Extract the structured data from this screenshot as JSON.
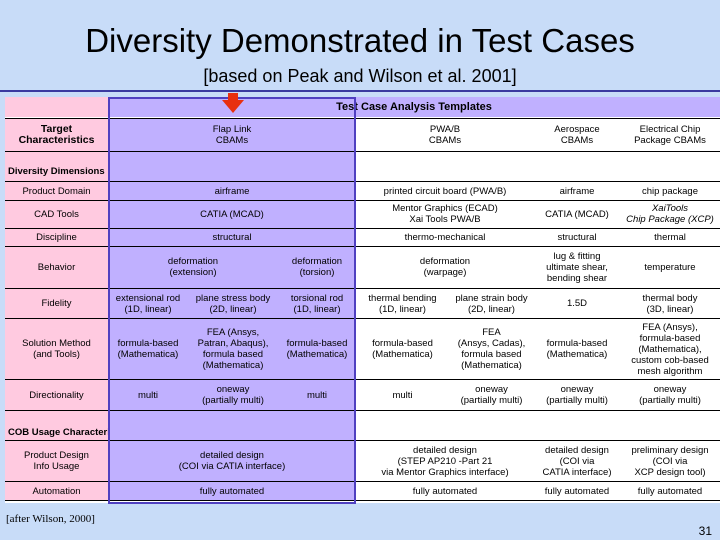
{
  "title": "Diversity Demonstrated in Test Cases",
  "subtitle": "[based on Peak and Wilson et al. 2001]",
  "templates_header": "Test Case Analysis Templates",
  "header": {
    "target": "Target\nCharacteristics",
    "flap": "Flap Link\nCBAMs",
    "pwab": "PWA/B\nCBAMs",
    "aero": "Aerospace\nCBAMs",
    "chip": "Electrical Chip\nPackage CBAMs"
  },
  "section_diversity": "Diversity Dimensions",
  "section_cob": "COB Usage Characteristics",
  "rows": {
    "domain": {
      "label": "Product Domain",
      "flap": "airframe",
      "pwab": "printed circuit board (PWA/B)",
      "aero": "airframe",
      "chip": "chip package"
    },
    "cad": {
      "label": "CAD Tools",
      "flap": "CATIA (MCAD)",
      "pwab": "Mentor Graphics (ECAD)\nXai Tools PWA/B",
      "aero": "CATIA (MCAD)",
      "chip": "XaiTools\nChip Package (XCP)"
    },
    "discipline": {
      "label": "Discipline",
      "flap": "structural",
      "pwab": "thermo-mechanical",
      "aero": "structural",
      "chip": "thermal"
    },
    "behavior": {
      "label": "Behavior",
      "flap1": "deformation\n(extension)",
      "flap2": "deformation\n(torsion)",
      "pwab": "deformation\n(warpage)",
      "aero": "lug & fitting\nultimate shear,\nbending shear",
      "chip": "temperature"
    },
    "fidelity": {
      "label": "Fidelity",
      "flap1": "extensional rod\n(1D, linear)",
      "flap2": "plane stress body\n(2D, linear)",
      "flap3": "torsional rod\n(1D, linear)",
      "pwab1": "thermal bending\n(1D, linear)",
      "pwab2": "plane strain body\n(2D, linear)",
      "aero": "1.5D",
      "chip": "thermal body\n(3D, linear)"
    },
    "solution": {
      "label": "Solution Method\n(and Tools)",
      "flap1": "formula-based\n(Mathematica)",
      "flap2": "FEA (Ansys,\nPatran, Abaqus),\nformula based\n(Mathematica)",
      "flap3": "formula-based\n(Mathematica)",
      "pwab1": "formula-based\n(Mathematica)",
      "pwab2": "FEA\n(Ansys, Cadas),\nformula based\n(Mathematica)",
      "aero": "formula-based\n(Mathematica)",
      "chip": "FEA (Ansys),\nformula-based\n(Mathematica),\ncustom cob-based\nmesh algorithm"
    },
    "direction": {
      "label": "Directionality",
      "flap1": "multi",
      "flap2": "oneway\n(partially multi)",
      "flap3": "multi",
      "pwab1": "multi",
      "pwab2": "oneway\n(partially multi)",
      "aero": "oneway\n(partially multi)",
      "chip": "oneway\n(partially multi)"
    },
    "design": {
      "label": "Product Design\nInfo Usage",
      "flap": "detailed design\n(COI via CATIA interface)",
      "pwab": "detailed design\n(STEP AP210 -Part 21\nvia Mentor Graphics interface)",
      "aero": "detailed design\n(COI via\nCATIA interface)",
      "chip": "preliminary design\n(COI via\nXCP design tool)"
    },
    "automation": {
      "label": "Automation",
      "flap": "fully automated",
      "pwab": "fully automated",
      "aero": "fully automated",
      "chip": "fully automated"
    }
  },
  "footer_note": "[after Wilson, 2000]",
  "page_number": "31",
  "colors": {
    "background": "#c8dcf8",
    "target_column": "#c0b0ff",
    "label_column": "#ffcae0",
    "arrow": "#e83010"
  }
}
